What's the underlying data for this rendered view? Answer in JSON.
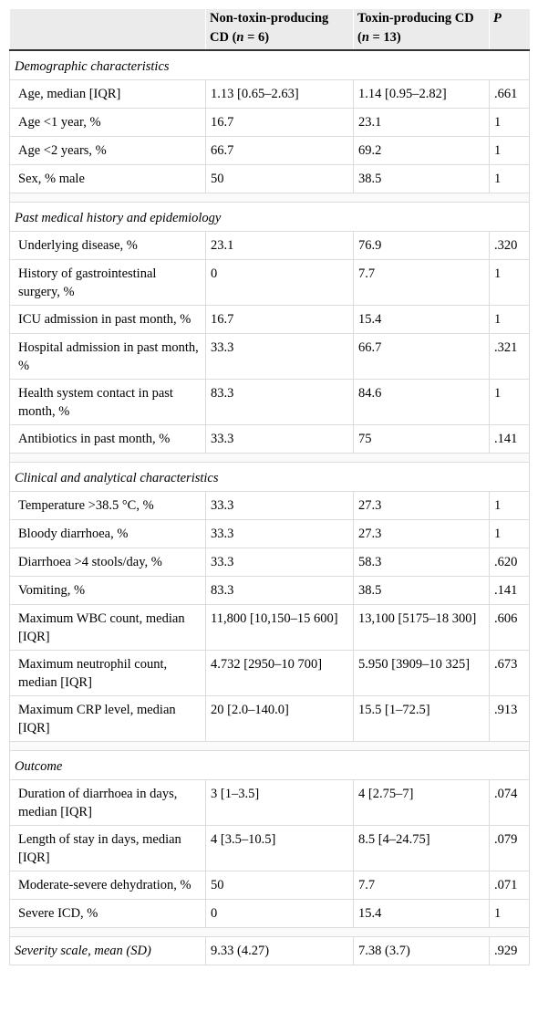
{
  "header": {
    "col1": "",
    "col2_line1": "Non-toxin-producing",
    "col2_line2_pre": "CD (",
    "col2_n": "n",
    "col2_line2_post": " = 6)",
    "col3_line1": "Toxin-producing CD",
    "col3_line2_pre": "(",
    "col3_n": "n",
    "col3_line2_post": " = 13)",
    "col4": "P"
  },
  "sections": [
    {
      "title": "Demographic characteristics",
      "rows": [
        {
          "label": "Age, median [IQR]",
          "non_toxin": "1.13 [0.65–2.63]",
          "toxin": "1.14 [0.95–2.82]",
          "p": ".661"
        },
        {
          "label": "Age <1 year, %",
          "non_toxin": "16.7",
          "toxin": "23.1",
          "p": "1"
        },
        {
          "label": "Age <2 years, %",
          "non_toxin": "66.7",
          "toxin": "69.2",
          "p": "1"
        },
        {
          "label": "Sex, % male",
          "non_toxin": "50",
          "toxin": "38.5",
          "p": "1"
        }
      ]
    },
    {
      "title": "Past medical history and epidemiology",
      "rows": [
        {
          "label": "Underlying disease, %",
          "non_toxin": "23.1",
          "toxin": "76.9",
          "p": ".320"
        },
        {
          "label": "History of gastrointestinal surgery, %",
          "non_toxin": "0",
          "toxin": "7.7",
          "p": "1"
        },
        {
          "label": "ICU admission in past month, %",
          "non_toxin": "16.7",
          "toxin": "15.4",
          "p": "1"
        },
        {
          "label": "Hospital admission in past month, %",
          "non_toxin": "33.3",
          "toxin": "66.7",
          "p": ".321"
        },
        {
          "label": "Health system contact in past month, %",
          "non_toxin": "83.3",
          "toxin": "84.6",
          "p": "1"
        },
        {
          "label": "Antibiotics in past month, %",
          "non_toxin": "33.3",
          "toxin": "75",
          "p": ".141"
        }
      ]
    },
    {
      "title": "Clinical and analytical characteristics",
      "rows": [
        {
          "label": "Temperature >38.5 °C, %",
          "non_toxin": "33.3",
          "toxin": "27.3",
          "p": "1"
        },
        {
          "label": "Bloody diarrhoea, %",
          "non_toxin": "33.3",
          "toxin": "27.3",
          "p": "1"
        },
        {
          "label": "Diarrhoea >4 stools/day, %",
          "non_toxin": "33.3",
          "toxin": "58.3",
          "p": ".620"
        },
        {
          "label": "Vomiting, %",
          "non_toxin": "83.3",
          "toxin": "38.5",
          "p": ".141"
        },
        {
          "label": "Maximum WBC count, median [IQR]",
          "non_toxin": "11,800 [10,150–15 600]",
          "toxin": "13,100 [5175–18 300]",
          "p": ".606"
        },
        {
          "label": "Maximum neutrophil count, median [IQR]",
          "non_toxin": "4.732 [2950–10 700]",
          "toxin": "5.950 [3909–10 325]",
          "p": ".673"
        },
        {
          "label": "Maximum CRP level, median [IQR]",
          "non_toxin": "20 [2.0–140.0]",
          "toxin": "15.5 [1–72.5]",
          "p": ".913"
        }
      ]
    },
    {
      "title": "Outcome",
      "rows": [
        {
          "label": "Duration of diarrhoea in days, median [IQR]",
          "non_toxin": "3 [1–3.5]",
          "toxin": "4 [2.75–7]",
          "p": ".074"
        },
        {
          "label": "Length of stay in days, median [IQR]",
          "non_toxin": "4 [3.5–10.5]",
          "toxin": "8.5 [4–24.75]",
          "p": ".079"
        },
        {
          "label": "Moderate-severe dehydration, %",
          "non_toxin": "50",
          "toxin": "7.7",
          "p": ".071"
        },
        {
          "label": "Severe ICD, %",
          "non_toxin": "0",
          "toxin": "15.4",
          "p": "1"
        }
      ]
    }
  ],
  "final_row": {
    "label": "Severity scale, mean (SD)",
    "non_toxin": "9.33 (4.27)",
    "toxin": "7.38 (3.7)",
    "p": ".929"
  }
}
